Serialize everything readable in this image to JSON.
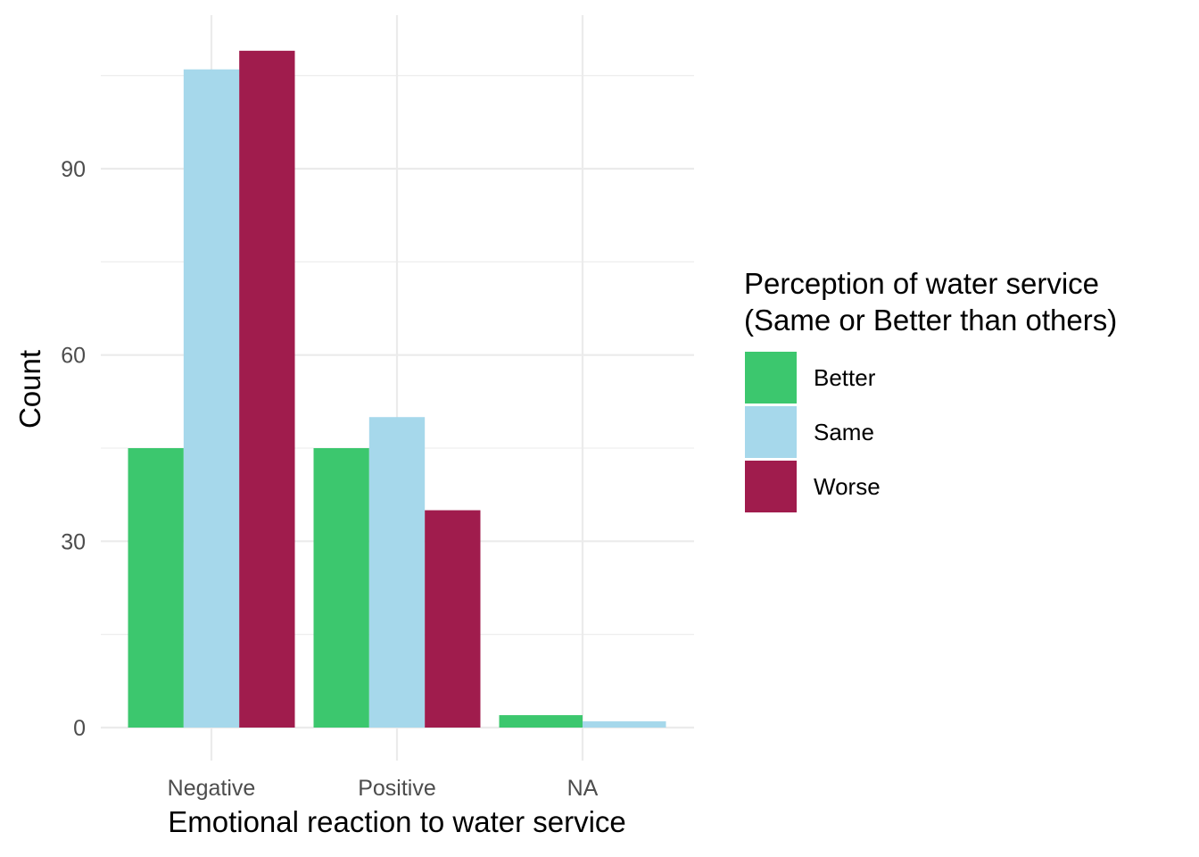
{
  "chart_data": {
    "type": "bar",
    "title": "",
    "xlabel": "Emotional reaction to water service",
    "ylabel": "Count",
    "categories": [
      "Negative",
      "Positive",
      "NA"
    ],
    "series": [
      {
        "name": "Better",
        "color": "#3cc76e",
        "values": [
          45,
          45,
          2
        ]
      },
      {
        "name": "Same",
        "color": "#a6d8eb",
        "values": [
          106,
          50,
          1
        ]
      },
      {
        "name": "Worse",
        "color": "#a01c4d",
        "values": [
          109,
          35,
          null
        ]
      }
    ],
    "yticks": [
      0,
      30,
      60,
      90
    ],
    "ylim": [
      0,
      115
    ],
    "grid": true,
    "legend": {
      "title_lines": [
        "Perception of water service",
        "(Same or Better than others)"
      ],
      "position": "right"
    }
  }
}
